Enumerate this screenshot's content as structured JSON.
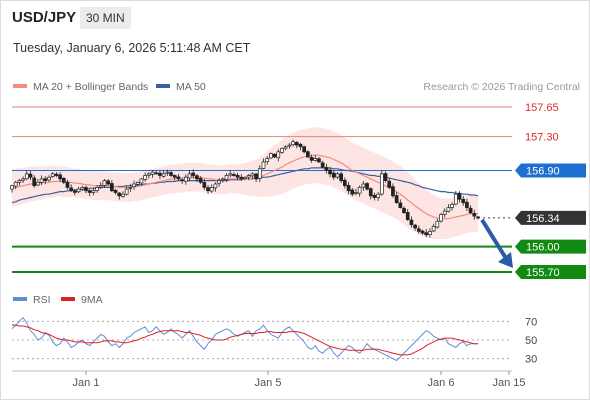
{
  "header": {
    "symbol": "USD/JPY",
    "timeframe": "30 MIN",
    "datetime": "Tuesday, January 6, 2026 5:11:48 AM CET"
  },
  "legend": {
    "ma20": "MA 20 + Bollinger Bands",
    "ma50": "MA 50",
    "credit": "Research © 2026 Trading Central"
  },
  "rsi_legend": {
    "rsi": "RSI",
    "ma": "9MA"
  },
  "colors": {
    "ma20": "#f28b82",
    "ma50": "#3d5f9e",
    "band_fill": "#fde0de",
    "candle": "#222222",
    "resistance": "#e8847c",
    "pivot": "#1f6fd1",
    "support": "#128a12",
    "current": "#333333",
    "arrow": "#2b5aa6",
    "rsi": "#5b8fd6",
    "rsi_ma": "#e02020"
  },
  "chart_data": [
    {
      "type": "candlestick",
      "title": "USD/JPY 30 MIN",
      "ylim": [
        155.55,
        157.82
      ],
      "x_tick_labels": [
        "Jan 1",
        "Jan 5",
        "Jan 6",
        "Jan 15"
      ],
      "levels": [
        {
          "name": "resistance-2",
          "value": 157.65,
          "label": "157.65",
          "kind": "resistance"
        },
        {
          "name": "resistance-1",
          "value": 157.3,
          "label": "157.30",
          "kind": "resistance"
        },
        {
          "name": "pivot",
          "value": 156.9,
          "label": "156.90",
          "kind": "pivot"
        },
        {
          "name": "last-price",
          "value": 156.34,
          "label": "156.34",
          "kind": "current"
        },
        {
          "name": "support-1",
          "value": 156.0,
          "label": "156.00",
          "kind": "support"
        },
        {
          "name": "support-2",
          "value": 155.7,
          "label": "155.70",
          "kind": "support"
        }
      ],
      "forecast": {
        "from": 156.34,
        "to": 155.7,
        "direction": "down"
      },
      "close": [
        156.72,
        156.76,
        156.78,
        156.8,
        156.86,
        156.82,
        156.72,
        156.76,
        156.8,
        156.78,
        156.82,
        156.86,
        156.84,
        156.8,
        156.76,
        156.7,
        156.66,
        156.64,
        156.68,
        156.7,
        156.66,
        156.64,
        156.66,
        156.7,
        156.72,
        156.78,
        156.74,
        156.66,
        156.64,
        156.6,
        156.62,
        156.68,
        156.7,
        156.74,
        156.76,
        156.8,
        156.84,
        156.86,
        156.88,
        156.86,
        156.84,
        156.86,
        156.88,
        156.84,
        156.82,
        156.8,
        156.78,
        156.82,
        156.86,
        156.84,
        156.8,
        156.76,
        156.7,
        156.66,
        156.7,
        156.74,
        156.78,
        156.8,
        156.84,
        156.86,
        156.84,
        156.82,
        156.8,
        156.82,
        156.84,
        156.86,
        156.8,
        156.92,
        157.0,
        157.04,
        157.1,
        157.06,
        157.12,
        157.16,
        157.18,
        157.2,
        157.24,
        157.2,
        157.18,
        157.12,
        157.06,
        157.02,
        157.04,
        157.0,
        156.94,
        156.9,
        156.86,
        156.82,
        156.86,
        156.78,
        156.72,
        156.66,
        156.62,
        156.64,
        156.7,
        156.74,
        156.68,
        156.6,
        156.58,
        156.62,
        156.86,
        156.78,
        156.7,
        156.6,
        156.52,
        156.46,
        156.4,
        156.32,
        156.26,
        156.22,
        156.18,
        156.16,
        156.14,
        156.18,
        156.24,
        156.3,
        156.38,
        156.42,
        156.46,
        156.5,
        156.62,
        156.56,
        156.52,
        156.46,
        156.4,
        156.36,
        156.34
      ],
      "ma20": [
        156.7,
        156.7,
        156.71,
        156.72,
        156.73,
        156.74,
        156.74,
        156.75,
        156.75,
        156.76,
        156.76,
        156.77,
        156.77,
        156.77,
        156.77,
        156.76,
        156.76,
        156.75,
        156.75,
        156.74,
        156.73,
        156.73,
        156.72,
        156.72,
        156.72,
        156.72,
        156.72,
        156.71,
        156.71,
        156.7,
        156.7,
        156.7,
        156.7,
        156.71,
        156.71,
        156.72,
        156.73,
        156.74,
        156.75,
        156.76,
        156.77,
        156.78,
        156.79,
        156.8,
        156.8,
        156.81,
        156.81,
        156.82,
        156.82,
        156.82,
        156.82,
        156.82,
        156.81,
        156.8,
        156.8,
        156.79,
        156.79,
        156.79,
        156.79,
        156.8,
        156.8,
        156.8,
        156.8,
        156.8,
        156.8,
        156.81,
        156.81,
        156.82,
        156.84,
        156.86,
        156.88,
        156.9,
        156.92,
        156.94,
        156.97,
        156.99,
        157.01,
        157.03,
        157.05,
        157.06,
        157.07,
        157.08,
        157.08,
        157.08,
        157.07,
        157.06,
        157.05,
        157.03,
        157.01,
        156.99,
        156.96,
        156.93,
        156.9,
        156.88,
        156.86,
        156.84,
        156.82,
        156.8,
        156.78,
        156.76,
        156.74,
        156.72,
        156.7,
        156.68,
        156.65,
        156.62,
        156.59,
        156.55,
        156.52,
        156.48,
        156.45,
        156.42,
        156.39,
        156.37,
        156.35,
        156.34,
        156.33,
        156.33,
        156.33,
        156.34,
        156.35,
        156.36,
        156.37,
        156.38,
        156.39,
        156.39,
        156.39
      ],
      "ma50": [
        156.52,
        156.53,
        156.55,
        156.56,
        156.57,
        156.58,
        156.59,
        156.6,
        156.61,
        156.62,
        156.62,
        156.63,
        156.64,
        156.65,
        156.65,
        156.66,
        156.66,
        156.67,
        156.67,
        156.68,
        156.68,
        156.69,
        156.69,
        156.69,
        156.7,
        156.7,
        156.7,
        156.7,
        156.71,
        156.71,
        156.71,
        156.72,
        156.72,
        156.72,
        156.73,
        156.73,
        156.74,
        156.74,
        156.75,
        156.75,
        156.76,
        156.76,
        156.77,
        156.77,
        156.77,
        156.78,
        156.78,
        156.78,
        156.78,
        156.78,
        156.78,
        156.78,
        156.78,
        156.78,
        156.78,
        156.78,
        156.78,
        156.78,
        156.78,
        156.79,
        156.79,
        156.79,
        156.79,
        156.8,
        156.8,
        156.8,
        156.81,
        156.81,
        156.82,
        156.82,
        156.83,
        156.84,
        156.85,
        156.86,
        156.87,
        156.88,
        156.89,
        156.9,
        156.91,
        156.92,
        156.92,
        156.93,
        156.93,
        156.93,
        156.93,
        156.93,
        156.93,
        156.92,
        156.92,
        156.91,
        156.9,
        156.9,
        156.89,
        156.88,
        156.87,
        156.86,
        156.85,
        156.84,
        156.84,
        156.83,
        156.83,
        156.82,
        156.81,
        156.8,
        156.79,
        156.78,
        156.77,
        156.76,
        156.75,
        156.73,
        156.72,
        156.7,
        156.69,
        156.68,
        156.67,
        156.66,
        156.65,
        156.65,
        156.64,
        156.64,
        156.63,
        156.63,
        156.62,
        156.62,
        156.61,
        156.61,
        156.6
      ],
      "bb_width": [
        0.22,
        0.22,
        0.22,
        0.21,
        0.21,
        0.21,
        0.2,
        0.2,
        0.2,
        0.19,
        0.19,
        0.19,
        0.18,
        0.18,
        0.18,
        0.18,
        0.17,
        0.17,
        0.17,
        0.17,
        0.17,
        0.17,
        0.17,
        0.17,
        0.17,
        0.17,
        0.17,
        0.17,
        0.17,
        0.17,
        0.17,
        0.17,
        0.17,
        0.17,
        0.17,
        0.17,
        0.17,
        0.17,
        0.17,
        0.17,
        0.17,
        0.17,
        0.17,
        0.17,
        0.17,
        0.17,
        0.17,
        0.17,
        0.17,
        0.17,
        0.17,
        0.17,
        0.17,
        0.17,
        0.17,
        0.17,
        0.17,
        0.17,
        0.17,
        0.17,
        0.17,
        0.17,
        0.18,
        0.19,
        0.2,
        0.21,
        0.22,
        0.23,
        0.25,
        0.27,
        0.29,
        0.3,
        0.31,
        0.32,
        0.33,
        0.33,
        0.33,
        0.33,
        0.33,
        0.33,
        0.33,
        0.33,
        0.33,
        0.33,
        0.33,
        0.33,
        0.33,
        0.33,
        0.33,
        0.33,
        0.33,
        0.33,
        0.33,
        0.33,
        0.33,
        0.33,
        0.33,
        0.33,
        0.33,
        0.33,
        0.33,
        0.33,
        0.33,
        0.33,
        0.33,
        0.33,
        0.33,
        0.33,
        0.32,
        0.31,
        0.3,
        0.29,
        0.28,
        0.27,
        0.26,
        0.25,
        0.24,
        0.24,
        0.24,
        0.23,
        0.23,
        0.23,
        0.22,
        0.22,
        0.22,
        0.22,
        0.22
      ]
    },
    {
      "type": "line",
      "title": "RSI",
      "ylim": [
        20,
        80
      ],
      "y_ticks": [
        30,
        50,
        70
      ],
      "series": [
        {
          "name": "RSI",
          "values": [
            62,
            66,
            70,
            74,
            68,
            60,
            56,
            50,
            52,
            58,
            55,
            48,
            44,
            46,
            52,
            48,
            42,
            44,
            48,
            50,
            46,
            44,
            48,
            52,
            56,
            54,
            48,
            44,
            46,
            42,
            46,
            52,
            54,
            58,
            60,
            62,
            64,
            58,
            60,
            64,
            60,
            56,
            58,
            62,
            58,
            56,
            52,
            56,
            60,
            54,
            48,
            44,
            40,
            46,
            50,
            56,
            58,
            60,
            62,
            60,
            56,
            54,
            56,
            58,
            60,
            54,
            60,
            62,
            66,
            60,
            56,
            54,
            52,
            58,
            62,
            64,
            60,
            56,
            52,
            48,
            42,
            40,
            44,
            38,
            36,
            40,
            42,
            36,
            32,
            36,
            40,
            44,
            42,
            38,
            36,
            40,
            46,
            42,
            40,
            38,
            36,
            34,
            32,
            30,
            28,
            32,
            36,
            40,
            44,
            48,
            52,
            56,
            60,
            58,
            54,
            52,
            50,
            52,
            46,
            44,
            42,
            46,
            48,
            44,
            46,
            46,
            46
          ]
        },
        {
          "name": "9MA",
          "values": [
            66,
            66,
            65,
            65,
            64,
            63,
            61,
            60,
            58,
            57,
            56,
            54,
            52,
            51,
            50,
            50,
            49,
            48,
            48,
            48,
            47,
            47,
            47,
            47,
            48,
            49,
            49,
            49,
            48,
            48,
            47,
            47,
            48,
            49,
            50,
            52,
            53,
            55,
            56,
            58,
            59,
            60,
            60,
            60,
            60,
            60,
            59,
            58,
            58,
            57,
            56,
            55,
            53,
            52,
            51,
            50,
            50,
            50,
            51,
            53,
            54,
            55,
            56,
            57,
            57,
            57,
            57,
            58,
            58,
            59,
            59,
            58,
            58,
            58,
            58,
            59,
            59,
            59,
            58,
            57,
            55,
            53,
            51,
            49,
            47,
            45,
            43,
            42,
            41,
            40,
            40,
            39,
            39,
            39,
            39,
            39,
            40,
            40,
            40,
            40,
            39,
            38,
            37,
            36,
            35,
            34,
            34,
            34,
            35,
            37,
            39,
            41,
            44,
            46,
            48,
            50,
            51,
            52,
            52,
            52,
            51,
            50,
            49,
            48,
            47,
            46,
            46
          ]
        }
      ]
    }
  ]
}
